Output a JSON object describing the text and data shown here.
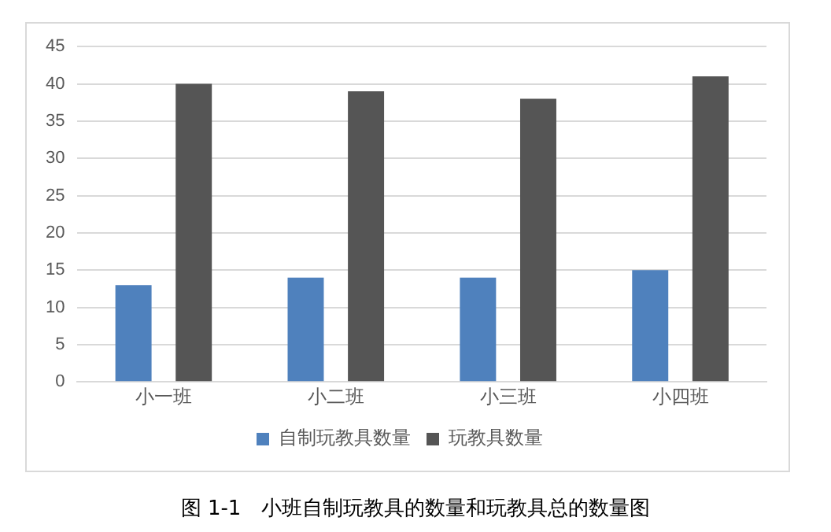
{
  "chart_data": {
    "type": "bar",
    "categories": [
      "小一班",
      "小二班",
      "小三班",
      "小四班"
    ],
    "series": [
      {
        "name": "自制玩教具数量",
        "color": "#4f81bd",
        "values": [
          13,
          14,
          14,
          15
        ]
      },
      {
        "name": "玩教具数量",
        "color": "#555555",
        "values": [
          40,
          39,
          38,
          41
        ]
      }
    ],
    "ylim": [
      0,
      45
    ],
    "yticks": [
      0,
      5,
      10,
      15,
      20,
      25,
      30,
      35,
      40,
      45
    ],
    "grid": "y",
    "legend": "bottom",
    "annotations": [
      "图 1-1　小班自制玩教具的数量和玩教具总的数量图"
    ]
  }
}
